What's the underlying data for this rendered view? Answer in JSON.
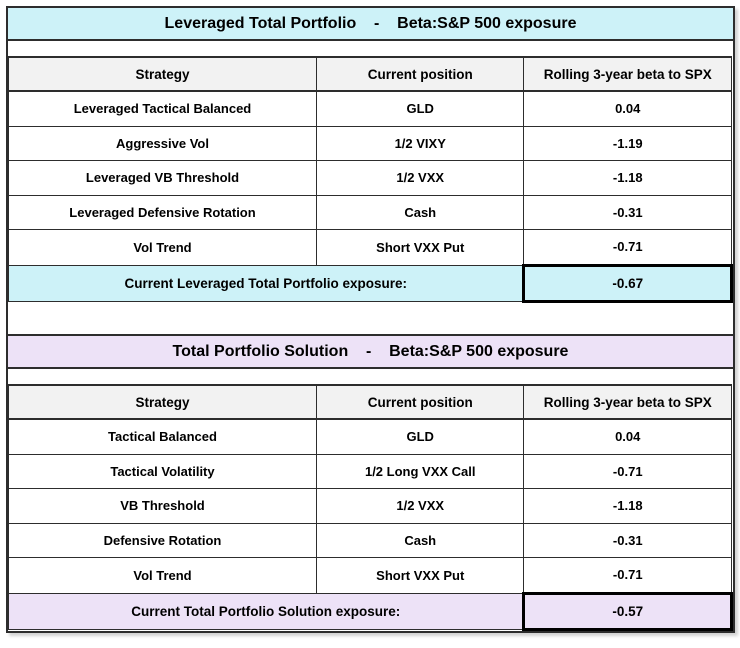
{
  "colors": {
    "table1_accent": "#cdf2f8",
    "table2_accent": "#ede2f7",
    "header_bg": "#f2f2f2",
    "border": "#2d2d2d"
  },
  "table1": {
    "title": "Leveraged Total Portfolio    -    Beta:S&P 500 exposure",
    "columns": [
      "Strategy",
      "Current position",
      "Rolling 3-year beta to SPX"
    ],
    "rows": [
      {
        "strategy": "Leveraged Tactical Balanced",
        "position": "GLD",
        "beta": "0.04"
      },
      {
        "strategy": "Aggressive Vol",
        "position": "1/2 VIXY",
        "beta": "-1.19"
      },
      {
        "strategy": "Leveraged VB Threshold",
        "position": "1/2 VXX",
        "beta": "-1.18"
      },
      {
        "strategy": "Leveraged Defensive Rotation",
        "position": "Cash",
        "beta": "-0.31"
      },
      {
        "strategy": "Vol Trend",
        "position": "Short VXX Put",
        "beta": "-0.71"
      }
    ],
    "total_label": "Current Leveraged Total Portfolio exposure:",
    "total_value": "-0.67"
  },
  "table2": {
    "title": "Total Portfolio Solution    -    Beta:S&P 500 exposure",
    "columns": [
      "Strategy",
      "Current position",
      "Rolling 3-year beta to SPX"
    ],
    "rows": [
      {
        "strategy": "Tactical Balanced",
        "position": "GLD",
        "beta": "0.04"
      },
      {
        "strategy": "Tactical Volatility",
        "position": "1/2 Long VXX Call",
        "beta": "-0.71"
      },
      {
        "strategy": "VB Threshold",
        "position": "1/2 VXX",
        "beta": "-1.18"
      },
      {
        "strategy": "Defensive Rotation",
        "position": "Cash",
        "beta": "-0.31"
      },
      {
        "strategy": "Vol Trend",
        "position": "Short VXX Put",
        "beta": "-0.71"
      }
    ],
    "total_label": "Current Total Portfolio Solution exposure:",
    "total_value": "-0.57"
  }
}
